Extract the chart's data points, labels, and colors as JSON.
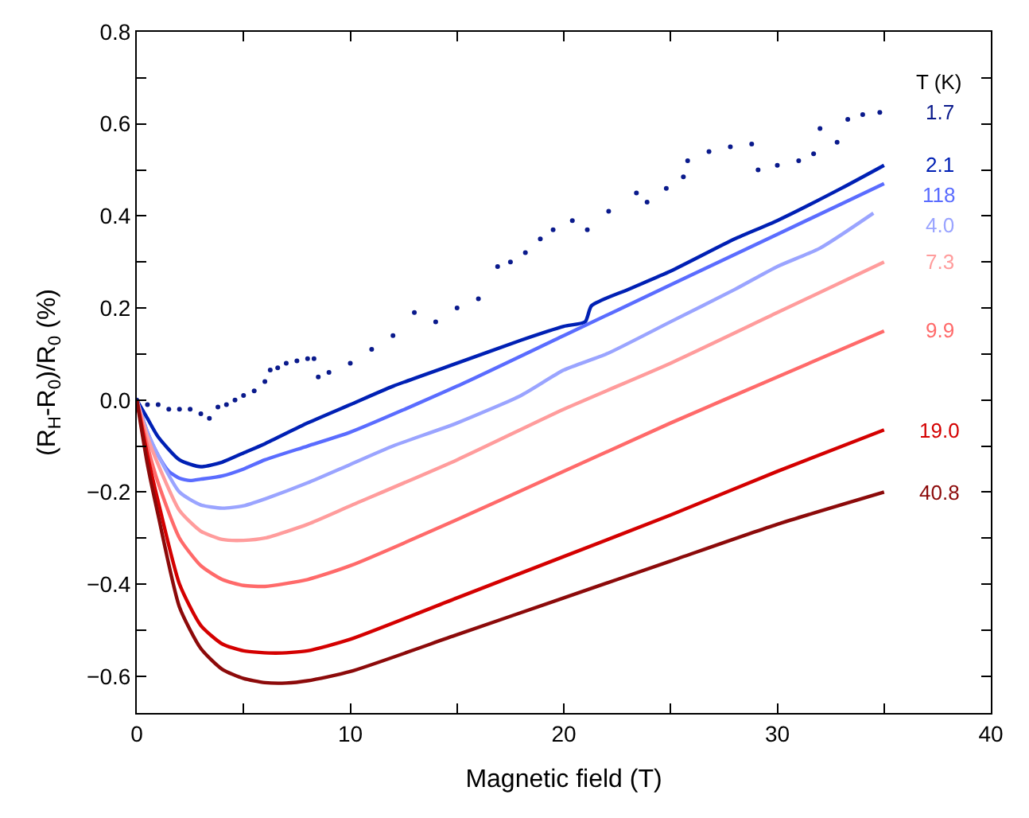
{
  "chart_data": {
    "type": "line",
    "xlabel": "Magnetic field (T)",
    "ylabel": "(R$_{H}$-R$_{0}$)/R$_{0}$ (%)",
    "legend_title": "T (K)",
    "xlim": [
      0,
      40
    ],
    "xticks": [
      0,
      {
        "value": 5,
        "label": null
      },
      10,
      {
        "value": 15,
        "label": null
      },
      20,
      {
        "value": 25,
        "label": null
      },
      30,
      {
        "value": 35,
        "label": null
      },
      40
    ],
    "ylim": [
      -0.68,
      0.8
    ],
    "yticks": [
      {
        "value": -0.6,
        "label": "−0.6"
      },
      {
        "value": -0.5,
        "label": null
      },
      {
        "value": -0.4,
        "label": "−0.4"
      },
      {
        "value": -0.3,
        "label": null
      },
      {
        "value": -0.2,
        "label": "−0.2"
      },
      {
        "value": -0.1,
        "label": null
      },
      {
        "value": 0,
        "label": "0.0"
      },
      {
        "value": 0.1,
        "label": null
      },
      0.2,
      {
        "value": 0.3,
        "label": null
      },
      0.4,
      {
        "value": 0.5,
        "label": null
      },
      0.6,
      {
        "value": 0.7,
        "label": null
      },
      0.8
    ],
    "series": [
      {
        "name": "1.7",
        "color": "#0a1a8c",
        "type": "scatter",
        "x": [
          0,
          0.5,
          1,
          1.5,
          2,
          2.5,
          3,
          3.4,
          3.8,
          4.2,
          4.6,
          5,
          5.5,
          6,
          6.25,
          6.6,
          7,
          7.5,
          8,
          8.3,
          8.5,
          9,
          10,
          11,
          12,
          13,
          14,
          15,
          16,
          16.9,
          17.5,
          18.2,
          18.9,
          19.5,
          20.4,
          21.1,
          22.1,
          23.4,
          23.9,
          24.8,
          25.6,
          25.8,
          26.8,
          27.8,
          28.8,
          29.1,
          30,
          31,
          31.7,
          32,
          32.8,
          33.3,
          34,
          34.8
        ],
        "values": [
          0,
          -0.01,
          -0.01,
          -0.02,
          -0.02,
          -0.02,
          -0.03,
          -0.04,
          -0.015,
          -0.01,
          0,
          0.01,
          0.02,
          0.04,
          0.065,
          0.07,
          0.08,
          0.085,
          0.09,
          0.09,
          0.05,
          0.06,
          0.08,
          0.11,
          0.14,
          0.19,
          0.17,
          0.2,
          0.22,
          0.29,
          0.3,
          0.32,
          0.35,
          0.37,
          0.39,
          0.37,
          0.41,
          0.45,
          0.43,
          0.46,
          0.485,
          0.52,
          0.54,
          0.55,
          0.556,
          0.5,
          0.51,
          0.52,
          0.535,
          0.59,
          0.56,
          0.61,
          0.62,
          0.625
        ]
      },
      {
        "name": "2.1",
        "color": "#0020b4",
        "x": [
          0,
          0.5,
          1,
          2,
          3,
          4,
          5,
          6,
          8,
          10,
          12,
          15,
          18,
          20,
          21,
          21.3,
          23,
          25,
          28,
          30,
          33,
          35
        ],
        "values": [
          0,
          -0.04,
          -0.08,
          -0.13,
          -0.145,
          -0.135,
          -0.115,
          -0.095,
          -0.05,
          -0.01,
          0.03,
          0.08,
          0.13,
          0.16,
          0.17,
          0.205,
          0.24,
          0.28,
          0.35,
          0.39,
          0.46,
          0.51
        ]
      },
      {
        "name": "118",
        "color": "#5a6cff",
        "x": [
          0,
          0.5,
          1,
          1.5,
          2,
          2.5,
          3,
          4,
          5,
          6,
          8,
          10,
          15,
          20,
          25,
          30,
          35
        ],
        "values": [
          0,
          -0.07,
          -0.12,
          -0.155,
          -0.17,
          -0.175,
          -0.172,
          -0.165,
          -0.15,
          -0.13,
          -0.1,
          -0.07,
          0.03,
          0.14,
          0.25,
          0.36,
          0.47
        ]
      },
      {
        "name": "4.0",
        "color": "#9aa4ff",
        "x": [
          0,
          0.5,
          1,
          2,
          3,
          4,
          5,
          6,
          8,
          10,
          12,
          15,
          18,
          20,
          22,
          25,
          28,
          30,
          32,
          34.5
        ],
        "values": [
          0,
          -0.07,
          -0.12,
          -0.2,
          -0.228,
          -0.235,
          -0.23,
          -0.215,
          -0.18,
          -0.14,
          -0.1,
          -0.05,
          0.01,
          0.065,
          0.1,
          0.17,
          0.24,
          0.29,
          0.33,
          0.406
        ]
      },
      {
        "name": "7.3",
        "color": "#ff9c9c",
        "x": [
          0,
          0.5,
          1,
          2,
          3,
          4,
          5,
          6,
          8,
          10,
          15,
          20,
          25,
          30,
          35
        ],
        "values": [
          0,
          -0.08,
          -0.14,
          -0.24,
          -0.285,
          -0.303,
          -0.305,
          -0.3,
          -0.27,
          -0.23,
          -0.13,
          -0.02,
          0.08,
          0.19,
          0.3
        ]
      },
      {
        "name": "9.9",
        "color": "#ff6a6a",
        "x": [
          0,
          0.5,
          1,
          2,
          3,
          4,
          5,
          6,
          8,
          10,
          15,
          20,
          25,
          30,
          35
        ],
        "values": [
          0,
          -0.1,
          -0.18,
          -0.3,
          -0.36,
          -0.39,
          -0.403,
          -0.405,
          -0.39,
          -0.36,
          -0.26,
          -0.155,
          -0.05,
          0.05,
          0.15
        ]
      },
      {
        "name": "19.0",
        "color": "#d40000",
        "x": [
          0,
          0.5,
          1,
          2,
          3,
          4,
          5,
          6.5,
          8,
          10,
          15,
          20,
          25,
          30,
          35
        ],
        "values": [
          0,
          -0.12,
          -0.22,
          -0.4,
          -0.49,
          -0.53,
          -0.545,
          -0.55,
          -0.545,
          -0.52,
          -0.43,
          -0.34,
          -0.25,
          -0.155,
          -0.065
        ]
      },
      {
        "name": "40.8",
        "color": "#8c0a0a",
        "x": [
          0,
          0.5,
          1,
          2,
          3,
          4,
          5,
          6,
          7,
          8,
          10,
          15,
          20,
          25,
          30,
          35
        ],
        "values": [
          0,
          -0.14,
          -0.25,
          -0.45,
          -0.54,
          -0.585,
          -0.605,
          -0.614,
          -0.615,
          -0.61,
          -0.59,
          -0.51,
          -0.43,
          -0.35,
          -0.27,
          -0.2
        ]
      }
    ]
  }
}
